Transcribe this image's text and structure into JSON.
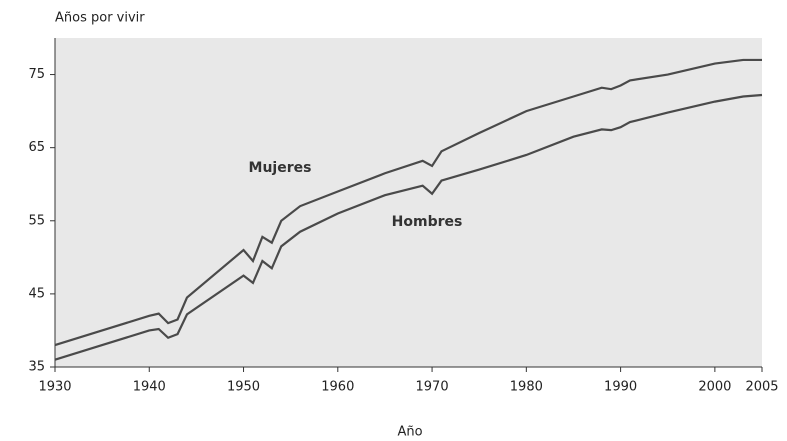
{
  "chart_data": {
    "type": "line",
    "title": "Años por vivir",
    "x_label": "Año",
    "x": [
      1930,
      1935,
      1940,
      1941,
      1942,
      1943,
      1944,
      1950,
      1951,
      1952,
      1953,
      1954,
      1956,
      1960,
      1965,
      1969,
      1970,
      1971,
      1975,
      1980,
      1985,
      1988,
      1989,
      1990,
      1991,
      1995,
      2000,
      2003,
      2005
    ],
    "series": [
      {
        "name": "Mujeres",
        "color": "#4a4a4a",
        "values": [
          38,
          40,
          42,
          42.3,
          41,
          41.5,
          44.5,
          51,
          49.5,
          52.8,
          52,
          55,
          57,
          59,
          61.5,
          63.2,
          62.5,
          64.5,
          67,
          70,
          72,
          73.2,
          73,
          73.5,
          74.2,
          75,
          76.5,
          77,
          77
        ]
      },
      {
        "name": "Hombres",
        "color": "#4a4a4a",
        "values": [
          36,
          38,
          40,
          40.2,
          39,
          39.5,
          42.2,
          47.5,
          46.5,
          49.5,
          48.5,
          51.5,
          53.5,
          56,
          58.5,
          59.8,
          58.7,
          60.5,
          62,
          64,
          66.5,
          67.5,
          67.4,
          67.8,
          68.5,
          69.8,
          71.3,
          72,
          72.2
        ]
      }
    ],
    "xlim": [
      1930,
      2005
    ],
    "xticks": [
      1930,
      1940,
      1950,
      1960,
      1970,
      1980,
      1990,
      2000,
      2005
    ],
    "ylim": [
      35,
      80
    ],
    "yticks": [
      35,
      45,
      55,
      65,
      75
    ],
    "plot_background": "#e8e8e8"
  }
}
